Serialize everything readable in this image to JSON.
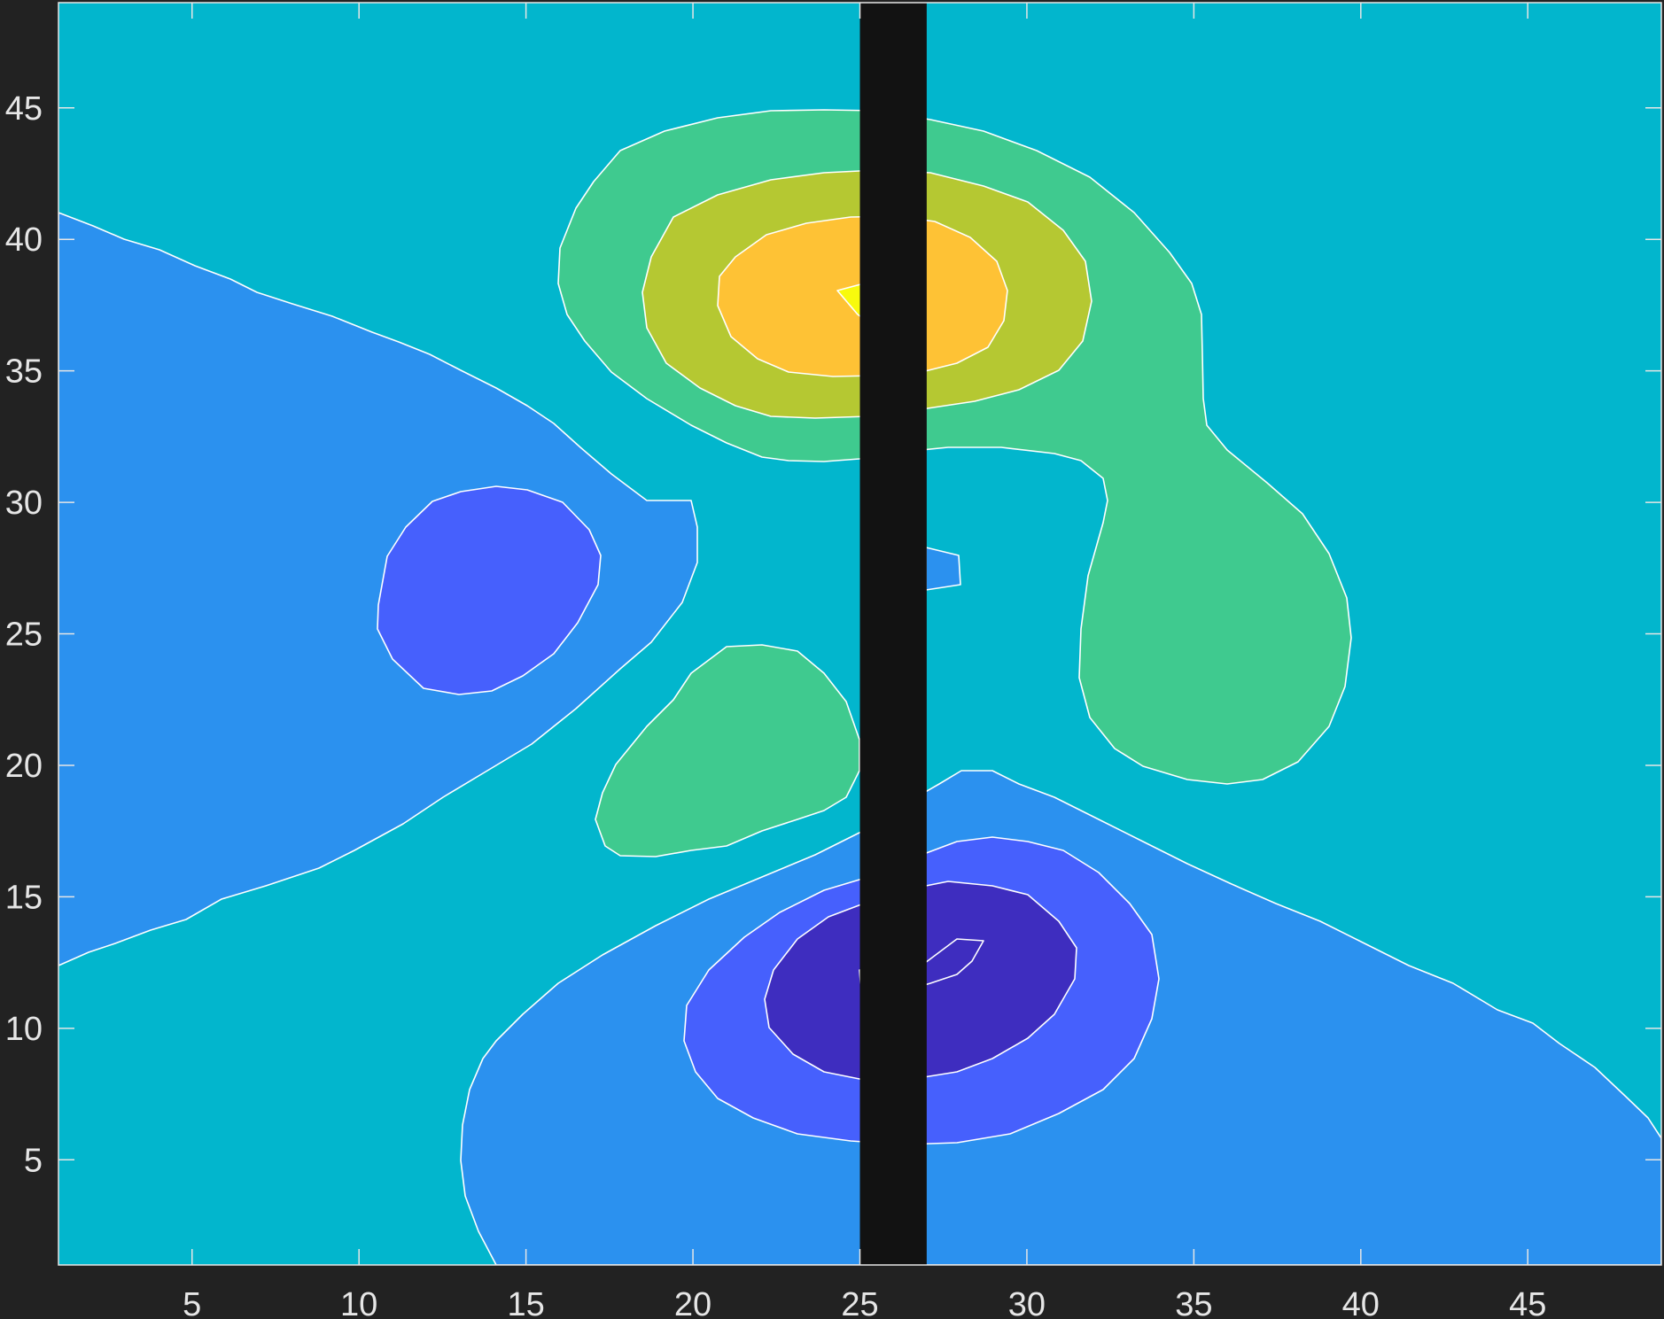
{
  "chart_data": {
    "type": "contour",
    "title": "",
    "xlabel": "",
    "ylabel": "",
    "xlim": [
      1,
      49
    ],
    "ylim": [
      1,
      49
    ],
    "x_ticks": [
      5,
      10,
      15,
      20,
      25,
      30,
      35,
      40,
      45
    ],
    "y_ticks": [
      5,
      10,
      15,
      20,
      25,
      30,
      35,
      40,
      45
    ],
    "x_tick_labels": [
      "5",
      "10",
      "15",
      "20",
      "25",
      "30",
      "35",
      "40",
      "45"
    ],
    "y_tick_labels": [
      "5",
      "10",
      "15",
      "20",
      "25",
      "30",
      "35",
      "40",
      "45"
    ],
    "grid": false,
    "background_color": "#222222",
    "plot_background_color": "#02b6cd",
    "contour_line_color": "#ffffff",
    "level_colors": {
      "deep_low": "#3e2dbf",
      "low": "#4660fd",
      "mid_low": "#2b91ef",
      "base": "#02b6cd",
      "mid_high": "#3fca8f",
      "high": "#b5c832",
      "very_high": "#fec235",
      "peak": "#f8fa0d"
    },
    "features": [
      {
        "kind": "peak",
        "center": [
          25,
          38
        ],
        "rings": [
          "mid_high",
          "high",
          "very_high",
          "peak"
        ]
      },
      {
        "kind": "lobe",
        "center": [
          37,
          24.5
        ],
        "rings": [
          "mid_high"
        ]
      },
      {
        "kind": "lobe",
        "center": [
          21.5,
          20
        ],
        "rings": [
          "mid_high"
        ]
      },
      {
        "kind": "trough",
        "center": [
          26.5,
          11.5
        ],
        "rings": [
          "mid_low",
          "low",
          "deep_low"
        ]
      },
      {
        "kind": "trough",
        "center": [
          13,
          26.5
        ],
        "rings": [
          "mid_low",
          "low"
        ]
      }
    ],
    "masked_band": {
      "x": [
        25,
        27
      ],
      "color": "#121212"
    }
  }
}
